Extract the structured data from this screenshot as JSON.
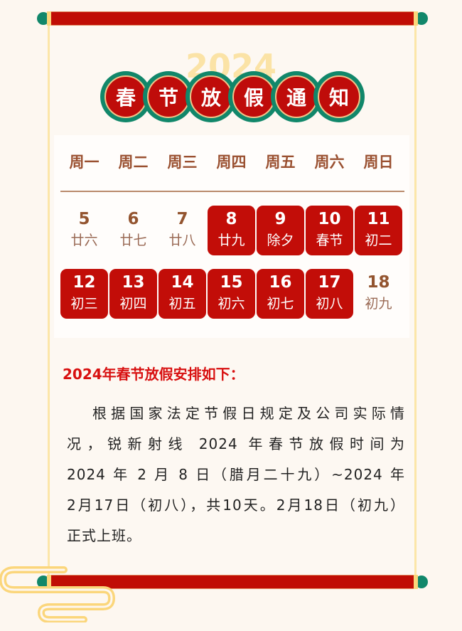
{
  "poster": {
    "year_watermark": "2024",
    "title_chars": [
      "春",
      "节",
      "放",
      "假",
      "通",
      "知"
    ],
    "weekdays": [
      "周一",
      "周二",
      "周三",
      "周四",
      "周五",
      "周六",
      "周日"
    ],
    "weeks": [
      [
        {
          "day": "5",
          "lunar": "廿六",
          "holiday": false
        },
        {
          "day": "6",
          "lunar": "廿七",
          "holiday": false
        },
        {
          "day": "7",
          "lunar": "廿八",
          "holiday": false
        },
        {
          "day": "8",
          "lunar": "廿九",
          "holiday": true
        },
        {
          "day": "9",
          "lunar": "除夕",
          "holiday": true
        },
        {
          "day": "10",
          "lunar": "春节",
          "holiday": true
        },
        {
          "day": "11",
          "lunar": "初二",
          "holiday": true
        }
      ],
      [
        {
          "day": "12",
          "lunar": "初三",
          "holiday": true
        },
        {
          "day": "13",
          "lunar": "初四",
          "holiday": true
        },
        {
          "day": "14",
          "lunar": "初五",
          "holiday": true
        },
        {
          "day": "15",
          "lunar": "初六",
          "holiday": true
        },
        {
          "day": "16",
          "lunar": "初七",
          "holiday": true
        },
        {
          "day": "17",
          "lunar": "初八",
          "holiday": true
        },
        {
          "day": "18",
          "lunar": "初九",
          "holiday": false
        }
      ]
    ],
    "heading": "2024年春节放假安排如下：",
    "body_lines": [
      "根据国家法定节假日规定及公司实际情",
      "况，锐新射线 2024 年春节放假时间为",
      "2024 年 2 月 8 日（腊月二十九）~2024 年",
      "2月17日（初八），共10天。2月18日（初九）",
      "正式上班。"
    ],
    "colors": {
      "red": "#c20d08",
      "green": "#11876a",
      "gold": "#fbd67b",
      "brown": "#93542f",
      "background": "#fdf7f0"
    }
  }
}
